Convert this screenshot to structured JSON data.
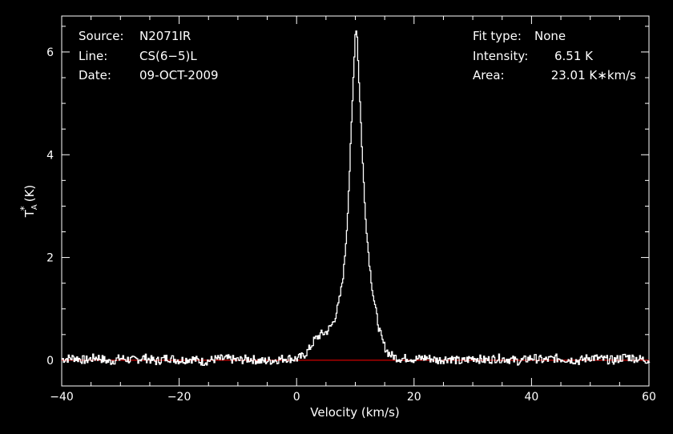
{
  "header": {
    "source_label": "Source:",
    "source_value": "N2071IR",
    "line_label": "Line:",
    "line_value": "CS(6−5)L",
    "date_label": "Date:",
    "date_value": "09-OCT-2009",
    "fit_label": "Fit type:",
    "fit_value": "None",
    "intensity_label": "Intensity:",
    "intensity_value": "6.51 K",
    "area_label": "Area:",
    "area_value": "23.01 K∗km/s"
  },
  "colors": {
    "background": "#000000",
    "spectrum": "#ffffff",
    "baseline": "#ff0000",
    "axes": "#ffffff"
  },
  "chart_data": {
    "type": "line",
    "xlabel": "Velocity (km/s)",
    "ylabel_main": "T",
    "ylabel_sup": "*",
    "ylabel_sub": "A",
    "ylabel_unit": "(K)",
    "xlim": [
      -40,
      60
    ],
    "ylim": [
      -0.5,
      6.7
    ],
    "xticks": [
      -40,
      -20,
      0,
      20,
      40,
      60
    ],
    "xtick_labels": [
      "−40",
      "−20",
      "0",
      "20",
      "40",
      "60"
    ],
    "yticks": [
      0,
      2,
      4,
      6
    ],
    "ytick_labels": [
      "0",
      "2",
      "4",
      "6"
    ],
    "grid": false,
    "baseline": 0,
    "series": [
      {
        "x": [
          -40,
          -38,
          -36,
          -34,
          -32,
          -30,
          -28,
          -26,
          -24,
          -22,
          -20,
          -18,
          -16,
          -14,
          -12,
          -10,
          -8,
          -6,
          -4,
          -2,
          0,
          1,
          2,
          3,
          4,
          5,
          5.5,
          6,
          6.5,
          7,
          7.5,
          8,
          8.5,
          9,
          9.5,
          9.8,
          10,
          10.2,
          10.5,
          11,
          11.5,
          12,
          12.5,
          13,
          13.5,
          14,
          14.5,
          15,
          15.5,
          16,
          17,
          18,
          19,
          20,
          22,
          24,
          26,
          28,
          30,
          32,
          34,
          36,
          38,
          40,
          42,
          44,
          46,
          48,
          50,
          52,
          54,
          56,
          58,
          60
        ],
        "y": [
          0.02,
          0.05,
          0.0,
          0.06,
          -0.03,
          0.04,
          0.0,
          0.05,
          -0.02,
          0.05,
          0.0,
          0.03,
          -0.03,
          0.02,
          0.03,
          0.0,
          0.03,
          -0.02,
          0.0,
          0.04,
          0.03,
          0.08,
          0.2,
          0.4,
          0.5,
          0.55,
          0.62,
          0.7,
          0.85,
          1.05,
          1.35,
          1.8,
          2.6,
          3.8,
          5.2,
          6.1,
          6.51,
          6.4,
          5.6,
          4.3,
          3.1,
          2.3,
          1.7,
          1.25,
          0.9,
          0.6,
          0.38,
          0.25,
          0.15,
          0.1,
          0.05,
          0.03,
          0.05,
          0.02,
          0.05,
          0.0,
          0.04,
          -0.03,
          0.05,
          0.0,
          0.04,
          0.02,
          -0.02,
          0.05,
          0.0,
          0.04,
          0.02,
          -0.01,
          0.06,
          0.02,
          0.0,
          0.07,
          0.03,
          0.0
        ]
      }
    ]
  }
}
